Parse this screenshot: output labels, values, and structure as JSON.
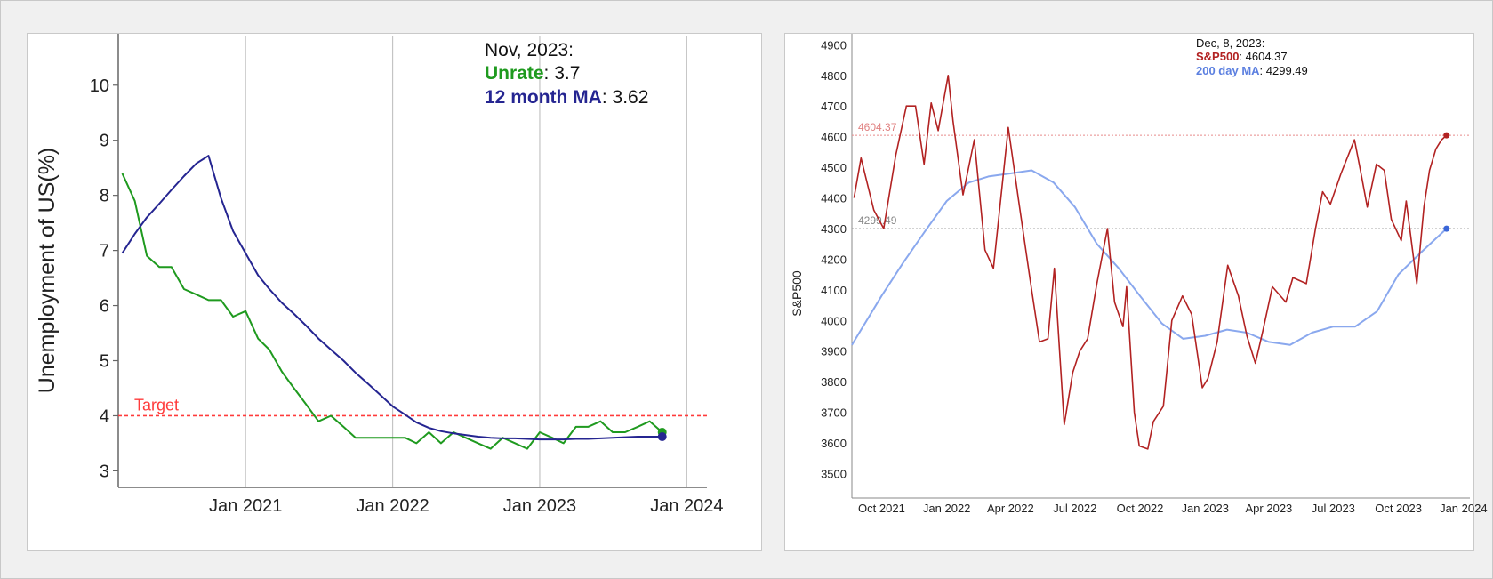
{
  "chart_data": [
    {
      "type": "line",
      "title": "",
      "xlabel": "",
      "ylabel": "Unemployment of US(%)",
      "ylim": [
        2.7,
        10.9
      ],
      "xlim": [
        "2020-02-20",
        "2024-02-20"
      ],
      "y_ticks": [
        "3",
        "4",
        "5",
        "6",
        "7",
        "8",
        "9",
        "10"
      ],
      "x_ticks": [
        {
          "date": "2021-01-01",
          "label": "Jan 2021"
        },
        {
          "date": "2022-01-01",
          "label": "Jan 2022"
        },
        {
          "date": "2023-01-01",
          "label": "Jan 2023"
        },
        {
          "date": "2024-01-01",
          "label": "Jan 2024"
        }
      ],
      "grid": "vertical",
      "target": {
        "value": 4.0,
        "label": "Target",
        "color": "#ff3b3b"
      },
      "series": [
        {
          "name": "Unrate",
          "color": "#1f9a1f",
          "x": [
            "2020-03-01",
            "2020-04-01",
            "2020-05-01",
            "2020-06-01",
            "2020-07-01",
            "2020-08-01",
            "2020-09-01",
            "2020-10-01",
            "2020-11-01",
            "2020-12-01",
            "2021-01-01",
            "2021-02-01",
            "2021-03-01",
            "2021-04-01",
            "2021-05-01",
            "2021-06-01",
            "2021-07-01",
            "2021-08-01",
            "2021-09-01",
            "2021-10-01",
            "2021-11-01",
            "2021-12-01",
            "2022-01-01",
            "2022-02-01",
            "2022-03-01",
            "2022-04-01",
            "2022-05-01",
            "2022-06-01",
            "2022-07-01",
            "2022-08-01",
            "2022-09-01",
            "2022-10-01",
            "2022-11-01",
            "2022-12-01",
            "2023-01-01",
            "2023-02-01",
            "2023-03-01",
            "2023-04-01",
            "2023-05-01",
            "2023-06-01",
            "2023-07-01",
            "2023-08-01",
            "2023-09-01",
            "2023-10-01",
            "2023-11-01"
          ],
          "values": [
            8.4,
            7.9,
            6.9,
            6.7,
            6.7,
            6.3,
            6.2,
            6.1,
            6.1,
            5.8,
            5.9,
            5.4,
            5.2,
            4.8,
            4.5,
            4.2,
            3.9,
            4.0,
            3.8,
            3.6,
            3.6,
            3.6,
            3.6,
            3.6,
            3.5,
            3.7,
            3.5,
            3.7,
            3.6,
            3.5,
            3.4,
            3.6,
            3.5,
            3.4,
            3.7,
            3.6,
            3.5,
            3.8,
            3.8,
            3.9,
            3.7,
            3.7,
            3.8,
            3.9,
            3.7
          ]
        },
        {
          "name": "12 month MA",
          "color": "#252591",
          "x": [
            "2020-03-01",
            "2020-04-01",
            "2020-05-01",
            "2020-06-01",
            "2020-07-01",
            "2020-08-01",
            "2020-09-01",
            "2020-10-01",
            "2020-11-01",
            "2020-12-01",
            "2021-01-01",
            "2021-02-01",
            "2021-03-01",
            "2021-04-01",
            "2021-05-01",
            "2021-06-01",
            "2021-07-01",
            "2021-08-01",
            "2021-09-01",
            "2021-10-01",
            "2021-11-01",
            "2021-12-01",
            "2022-01-01",
            "2022-02-01",
            "2022-03-01",
            "2022-04-01",
            "2022-05-01",
            "2022-06-01",
            "2022-07-01",
            "2022-08-01",
            "2022-09-01",
            "2022-10-01",
            "2022-11-01",
            "2022-12-01",
            "2023-01-01",
            "2023-02-01",
            "2023-03-01",
            "2023-04-01",
            "2023-05-01",
            "2023-06-01",
            "2023-07-01",
            "2023-08-01",
            "2023-09-01",
            "2023-10-01",
            "2023-11-01"
          ],
          "values": [
            6.95,
            7.3,
            7.6,
            7.85,
            8.1,
            8.35,
            8.58,
            8.72,
            7.95,
            7.35,
            6.95,
            6.55,
            6.3,
            6.05,
            5.85,
            5.63,
            5.4,
            5.2,
            5.0,
            4.78,
            4.58,
            4.38,
            4.17,
            4.02,
            3.88,
            3.78,
            3.72,
            3.68,
            3.65,
            3.62,
            3.6,
            3.59,
            3.59,
            3.58,
            3.57,
            3.57,
            3.57,
            3.58,
            3.58,
            3.59,
            3.6,
            3.61,
            3.62,
            3.62,
            3.62
          ]
        }
      ],
      "annotation": {
        "date_label": "Nov, 2023:",
        "line1_name": "Unrate",
        "line1_value": ": 3.7",
        "line2_name": "12 month MA",
        "line2_value": ": 3.62"
      }
    },
    {
      "type": "line",
      "title": "",
      "xlabel": "",
      "ylabel": "S&P500",
      "ylim": [
        3420,
        4930
      ],
      "xlim": [
        "2021-08-20",
        "2024-01-10"
      ],
      "y_ticks": [
        "3500",
        "3600",
        "3700",
        "3800",
        "3900",
        "4000",
        "4100",
        "4200",
        "4300",
        "4400",
        "4500",
        "4600",
        "4700",
        "4800",
        "4900"
      ],
      "x_ticks": [
        {
          "date": "2021-10-01",
          "label": "Oct 2021"
        },
        {
          "date": "2022-01-01",
          "label": "Jan 2022"
        },
        {
          "date": "2022-04-01",
          "label": "Apr 2022"
        },
        {
          "date": "2022-07-01",
          "label": "Jul 2022"
        },
        {
          "date": "2022-10-01",
          "label": "Oct 2022"
        },
        {
          "date": "2023-01-01",
          "label": "Jan 2023"
        },
        {
          "date": "2023-04-01",
          "label": "Apr 2023"
        },
        {
          "date": "2023-07-01",
          "label": "Jul 2023"
        },
        {
          "date": "2023-10-01",
          "label": "Oct 2023"
        },
        {
          "date": "2024-01-01",
          "label": "Jan 2024"
        }
      ],
      "grid": "none",
      "ref_lines": [
        {
          "value": 4604.37,
          "label": "4604.37",
          "color": "#e88a8a",
          "label_color": "#e08080"
        },
        {
          "value": 4299.49,
          "label": "4299.49",
          "color": "#888888",
          "label_color": "#888888"
        }
      ],
      "series": [
        {
          "name": "S&P500",
          "color": "#b22222",
          "x": [
            "2021-08-23",
            "2021-09-02",
            "2021-09-20",
            "2021-10-04",
            "2021-10-21",
            "2021-11-05",
            "2021-11-18",
            "2021-11-30",
            "2021-12-10",
            "2021-12-20",
            "2022-01-03",
            "2022-01-10",
            "2022-01-24",
            "2022-02-09",
            "2022-02-24",
            "2022-03-08",
            "2022-03-29",
            "2022-04-12",
            "2022-04-29",
            "2022-05-12",
            "2022-05-24",
            "2022-06-02",
            "2022-06-16",
            "2022-06-28",
            "2022-07-08",
            "2022-07-19",
            "2022-08-01",
            "2022-08-16",
            "2022-08-26",
            "2022-09-07",
            "2022-09-12",
            "2022-09-23",
            "2022-09-30",
            "2022-10-12",
            "2022-10-20",
            "2022-11-03",
            "2022-11-15",
            "2022-11-30",
            "2022-12-13",
            "2022-12-28",
            "2023-01-05",
            "2023-01-18",
            "2023-02-02",
            "2023-02-17",
            "2023-03-01",
            "2023-03-13",
            "2023-03-24",
            "2023-04-06",
            "2023-04-25",
            "2023-05-05",
            "2023-05-24",
            "2023-06-06",
            "2023-06-16",
            "2023-06-27",
            "2023-07-12",
            "2023-07-31",
            "2023-08-10",
            "2023-08-18",
            "2023-08-31",
            "2023-09-11",
            "2023-09-21",
            "2023-10-05",
            "2023-10-12",
            "2023-10-27",
            "2023-11-06",
            "2023-11-14",
            "2023-11-23",
            "2023-12-01",
            "2023-12-08"
          ],
          "values": [
            4400,
            4530,
            4360,
            4300,
            4540,
            4700,
            4700,
            4510,
            4710,
            4620,
            4800,
            4650,
            4410,
            4590,
            4230,
            4170,
            4630,
            4400,
            4130,
            3930,
            3940,
            4170,
            3660,
            3830,
            3900,
            3940,
            4120,
            4300,
            4060,
            3980,
            4110,
            3700,
            3590,
            3580,
            3670,
            3720,
            4000,
            4080,
            4020,
            3780,
            3810,
            3930,
            4180,
            4080,
            3950,
            3860,
            3970,
            4110,
            4060,
            4140,
            4120,
            4300,
            4420,
            4380,
            4480,
            4590,
            4470,
            4370,
            4510,
            4490,
            4330,
            4260,
            4390,
            4120,
            4370,
            4490,
            4560,
            4590,
            4604.37
          ]
        },
        {
          "name": "200 day MA",
          "color": "#8aa8ee",
          "x": [
            "2021-08-20",
            "2021-10-01",
            "2021-11-01",
            "2021-12-01",
            "2022-01-01",
            "2022-02-01",
            "2022-03-01",
            "2022-04-01",
            "2022-05-01",
            "2022-06-01",
            "2022-07-01",
            "2022-08-01",
            "2022-09-01",
            "2022-10-01",
            "2022-11-01",
            "2022-12-01",
            "2023-01-01",
            "2023-02-01",
            "2023-03-01",
            "2023-04-01",
            "2023-05-01",
            "2023-06-01",
            "2023-07-01",
            "2023-08-01",
            "2023-09-01",
            "2023-10-01",
            "2023-11-01",
            "2023-12-08"
          ],
          "values": [
            3920,
            4080,
            4190,
            4290,
            4390,
            4450,
            4470,
            4480,
            4490,
            4450,
            4370,
            4250,
            4170,
            4080,
            3990,
            3940,
            3950,
            3970,
            3960,
            3930,
            3920,
            3960,
            3980,
            3980,
            4030,
            4150,
            4220,
            4299.49
          ]
        }
      ],
      "annotation": {
        "date_label": "Dec, 8, 2023:",
        "line1_name": "S&P500",
        "line1_value": ": 4604.37",
        "line2_name": "200 day MA",
        "line2_value": ": 4299.49"
      }
    }
  ]
}
